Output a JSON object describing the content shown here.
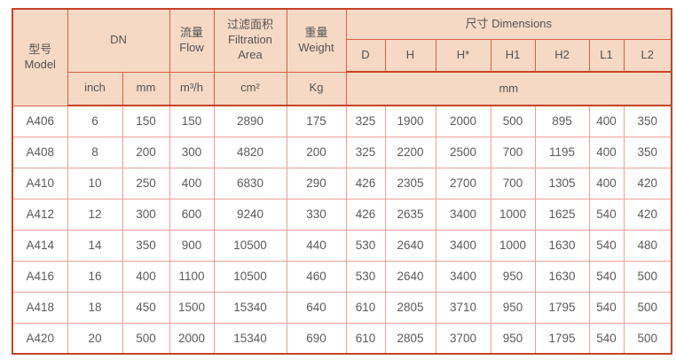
{
  "table": {
    "header": {
      "model": {
        "zh": "型号",
        "en": "Model"
      },
      "dn": "DN",
      "flow": {
        "zh": "流量",
        "en": "Flow"
      },
      "filtration": {
        "zh": "过滤面积",
        "en_line1": "Filtration",
        "en_line2": "Area"
      },
      "weight": {
        "zh": "重量",
        "en": "Weight"
      },
      "dimensions": "尺寸 Dimensions",
      "dim_columns": [
        "D",
        "H",
        "H*",
        "H1",
        "H2",
        "L1",
        "L2"
      ],
      "units": {
        "dn_inch": "inch",
        "dn_mm": "mm",
        "flow": "m³/h",
        "filtration": "cm²",
        "weight": "Kg",
        "dimensions": "mm"
      }
    },
    "column_keys": [
      "model",
      "dn-inch",
      "dn-mm",
      "flow",
      "filtration-area",
      "weight",
      "dim-d",
      "dim-h",
      "dim-hstar",
      "dim-h1",
      "dim-h2",
      "dim-l1",
      "dim-l2"
    ],
    "rows": [
      [
        "A406",
        "6",
        "150",
        "150",
        "2890",
        "175",
        "325",
        "1900",
        "2000",
        "500",
        "895",
        "400",
        "350"
      ],
      [
        "A408",
        "8",
        "200",
        "300",
        "4820",
        "200",
        "325",
        "2200",
        "2500",
        "700",
        "1195",
        "400",
        "350"
      ],
      [
        "A410",
        "10",
        "250",
        "400",
        "6830",
        "290",
        "426",
        "2305",
        "2700",
        "700",
        "1305",
        "400",
        "420"
      ],
      [
        "A412",
        "12",
        "300",
        "600",
        "9240",
        "330",
        "426",
        "2635",
        "3400",
        "1000",
        "1625",
        "540",
        "420"
      ],
      [
        "A414",
        "14",
        "350",
        "900",
        "10500",
        "440",
        "530",
        "2640",
        "3400",
        "1000",
        "1630",
        "540",
        "480"
      ],
      [
        "A416",
        "16",
        "400",
        "1100",
        "10500",
        "460",
        "530",
        "2640",
        "3400",
        "950",
        "1630",
        "540",
        "500"
      ],
      [
        "A418",
        "18",
        "450",
        "1500",
        "15340",
        "640",
        "610",
        "2805",
        "3710",
        "950",
        "1795",
        "540",
        "500"
      ],
      [
        "A420",
        "20",
        "500",
        "2000",
        "15340",
        "690",
        "610",
        "2805",
        "3700",
        "950",
        "1795",
        "540",
        "500"
      ]
    ]
  },
  "colors": {
    "header_bg": "#f6d9c5",
    "grid_dark": "#c64328",
    "grid_header": "#d65f45",
    "grid_light": "#eda095",
    "text": "#5a5a5a"
  },
  "chart_data": {
    "type": "table",
    "title": "",
    "columns": [
      "型号 Model",
      "DN inch",
      "DN mm",
      "流量 Flow (m³/h)",
      "过滤面积 Filtration Area (cm²)",
      "重量 Weight (Kg)",
      "D (mm)",
      "H (mm)",
      "H* (mm)",
      "H1 (mm)",
      "H2 (mm)",
      "L1 (mm)",
      "L2 (mm)"
    ],
    "rows": [
      [
        "A406",
        6,
        150,
        150,
        2890,
        175,
        325,
        1900,
        2000,
        500,
        895,
        400,
        350
      ],
      [
        "A408",
        8,
        200,
        300,
        4820,
        200,
        325,
        2200,
        2500,
        700,
        1195,
        400,
        350
      ],
      [
        "A410",
        10,
        250,
        400,
        6830,
        290,
        426,
        2305,
        2700,
        700,
        1305,
        400,
        420
      ],
      [
        "A412",
        12,
        300,
        600,
        9240,
        330,
        426,
        2635,
        3400,
        1000,
        1625,
        540,
        420
      ],
      [
        "A414",
        14,
        350,
        900,
        10500,
        440,
        530,
        2640,
        3400,
        1000,
        1630,
        540,
        480
      ],
      [
        "A416",
        16,
        400,
        1100,
        10500,
        460,
        530,
        2640,
        3400,
        950,
        1630,
        540,
        500
      ],
      [
        "A418",
        18,
        450,
        1500,
        15340,
        640,
        610,
        2805,
        3710,
        950,
        1795,
        540,
        500
      ],
      [
        "A420",
        20,
        500,
        2000,
        15340,
        690,
        610,
        2805,
        3700,
        950,
        1795,
        540,
        500
      ]
    ],
    "layout": {
      "grid": true,
      "header_levels": 3
    }
  }
}
